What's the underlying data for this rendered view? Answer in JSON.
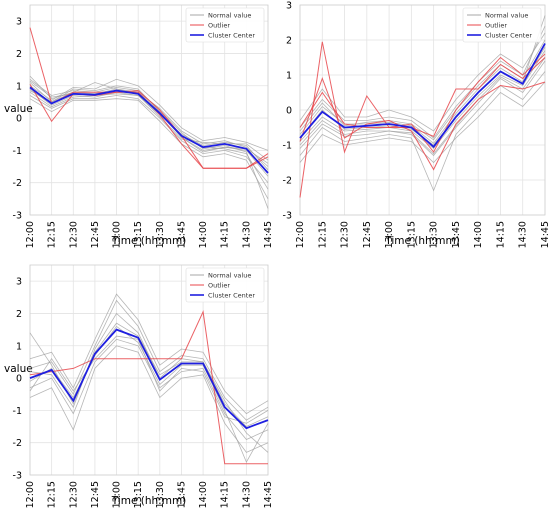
{
  "chart_data": [
    {
      "type": "line",
      "title": "",
      "xlabel": "Time (hh:mm)",
      "ylabel": "value",
      "ylim": [
        -3,
        3.5
      ],
      "yticks": [
        -3,
        -2,
        -1,
        0,
        1,
        2,
        3
      ],
      "grid": true,
      "legend_position": "top-right",
      "categories": [
        "12:00",
        "12:15",
        "12:30",
        "12:45",
        "13:00",
        "13:15",
        "13:30",
        "13:45",
        "14:00",
        "14:15",
        "14:30",
        "14:45"
      ],
      "legend": [
        "Normal value",
        "Outlier",
        "Cluster Center"
      ],
      "colors": {
        "normal": "#9e9e9e",
        "outlier": "#e8474b",
        "center": "#1f1fe0"
      },
      "center": [
        0.95,
        0.45,
        0.75,
        0.72,
        0.85,
        0.75,
        0.15,
        -0.55,
        -0.9,
        -0.8,
        -0.95,
        -1.7
      ],
      "outliers": [
        [
          2.8,
          0.45,
          0.8,
          0.8,
          0.8,
          0.8,
          0.1,
          -0.8,
          -1.55,
          -1.55,
          -1.55,
          -1.1
        ],
        [
          1.05,
          -0.1,
          0.75,
          0.7,
          0.8,
          0.85,
          0.25,
          -0.55,
          -1.55,
          -1.55,
          -1.55,
          -1.2
        ]
      ],
      "normals": [
        [
          1.3,
          0.6,
          0.8,
          0.75,
          0.9,
          0.8,
          0.3,
          -0.4,
          -0.8,
          -0.7,
          -0.9,
          -1.5
        ],
        [
          0.7,
          0.3,
          0.6,
          0.6,
          0.7,
          0.6,
          0.0,
          -0.7,
          -1.1,
          -1.0,
          -1.2,
          -2.0
        ],
        [
          1.1,
          0.5,
          0.9,
          0.85,
          1.0,
          0.9,
          0.2,
          -0.6,
          -1.0,
          -0.9,
          -1.0,
          -1.8
        ],
        [
          0.9,
          0.4,
          0.7,
          0.65,
          0.8,
          0.7,
          0.1,
          -0.5,
          -0.85,
          -0.75,
          -0.85,
          -1.6
        ],
        [
          1.2,
          0.7,
          0.85,
          0.8,
          0.95,
          0.85,
          0.25,
          -0.45,
          -0.95,
          -0.85,
          -1.05,
          -2.8
        ],
        [
          0.8,
          0.35,
          0.65,
          0.7,
          0.75,
          0.7,
          0.05,
          -0.65,
          -0.75,
          -0.8,
          -0.8,
          -1.3
        ],
        [
          1.0,
          0.55,
          0.95,
          0.9,
          1.2,
          1.0,
          0.4,
          -0.3,
          -0.7,
          -0.6,
          -0.75,
          -1.0
        ],
        [
          0.6,
          0.2,
          0.55,
          0.55,
          0.6,
          0.55,
          -0.1,
          -0.8,
          -1.2,
          -1.1,
          -1.3,
          -2.5
        ],
        [
          1.15,
          0.65,
          0.75,
          0.75,
          0.85,
          0.8,
          0.2,
          -0.55,
          -0.9,
          -0.95,
          -1.1,
          -2.2
        ],
        [
          0.85,
          0.5,
          0.8,
          1.1,
          0.9,
          0.75,
          0.15,
          -0.6,
          -1.05,
          -0.9,
          -0.95,
          -1.4
        ]
      ]
    },
    {
      "type": "line",
      "title": "",
      "xlabel": "Time (hh:mm)",
      "ylabel": "",
      "ylim": [
        -3,
        3
      ],
      "yticks": [
        -3,
        -2,
        -1,
        0,
        1,
        2,
        3
      ],
      "grid": true,
      "legend_position": "top-right",
      "categories": [
        "12:00",
        "12:15",
        "12:30",
        "12:45",
        "13:00",
        "13:15",
        "13:30",
        "13:45",
        "14:00",
        "14:15",
        "14:30",
        "14:45"
      ],
      "legend": [
        "Normal value",
        "Outlier",
        "Cluster Center"
      ],
      "colors": {
        "normal": "#9e9e9e",
        "outlier": "#e8474b",
        "center": "#1f1fe0"
      },
      "center": [
        -0.8,
        -0.05,
        -0.5,
        -0.45,
        -0.4,
        -0.5,
        -1.05,
        -0.2,
        0.5,
        1.1,
        0.75,
        1.9
      ],
      "outliers": [
        [
          -2.5,
          1.95,
          -1.2,
          0.4,
          -0.5,
          -0.5,
          -0.75,
          0.6,
          0.6,
          1.3,
          0.9,
          1.5
        ],
        [
          -0.9,
          0.9,
          -0.8,
          -0.4,
          -0.3,
          -0.6,
          -1.7,
          -0.4,
          0.3,
          0.7,
          0.6,
          0.8
        ],
        [
          -0.5,
          0.5,
          -0.4,
          -0.5,
          -0.5,
          -0.4,
          -1.2,
          0.0,
          0.8,
          1.5,
          1.0,
          1.6
        ]
      ],
      "normals": [
        [
          -0.5,
          0.3,
          -0.3,
          -0.3,
          -0.2,
          -0.3,
          -0.8,
          0.1,
          0.8,
          1.4,
          1.0,
          2.4
        ],
        [
          -1.0,
          -0.3,
          -0.7,
          -0.6,
          -0.6,
          -0.7,
          -1.3,
          -0.5,
          0.2,
          0.9,
          0.5,
          1.4
        ],
        [
          -0.7,
          0.1,
          -0.4,
          -0.4,
          -0.35,
          -0.45,
          -0.95,
          -0.1,
          0.6,
          1.2,
          0.8,
          2.7
        ],
        [
          -1.3,
          -0.5,
          -0.9,
          -0.8,
          -0.7,
          -0.8,
          -2.3,
          -0.7,
          0.0,
          0.7,
          0.3,
          1.1
        ],
        [
          -0.3,
          0.6,
          -0.2,
          -0.2,
          0.0,
          -0.2,
          -0.6,
          0.3,
          1.0,
          1.6,
          1.2,
          2.2
        ],
        [
          -0.9,
          -0.2,
          -0.6,
          -0.55,
          -0.5,
          -0.6,
          -1.1,
          -0.3,
          0.4,
          1.0,
          0.7,
          1.7
        ],
        [
          -1.5,
          -0.7,
          -1.0,
          -0.9,
          -0.8,
          -0.9,
          -1.5,
          -0.8,
          -0.2,
          0.5,
          0.1,
          0.8
        ],
        [
          -0.6,
          0.2,
          -0.45,
          -0.35,
          -0.3,
          -0.4,
          -0.85,
          0.0,
          0.7,
          1.3,
          0.9,
          2.0
        ],
        [
          -0.8,
          0.0,
          -0.55,
          -0.5,
          -0.45,
          -0.55,
          -1.0,
          -0.2,
          0.5,
          1.1,
          0.75,
          1.8
        ],
        [
          -1.1,
          -0.4,
          -0.75,
          -0.7,
          -0.6,
          -0.65,
          -1.25,
          -0.45,
          0.3,
          0.95,
          0.6,
          1.5
        ]
      ]
    },
    {
      "type": "line",
      "title": "",
      "xlabel": "Time (hh:mm)",
      "ylabel": "value",
      "ylim": [
        -3,
        3.5
      ],
      "yticks": [
        -3,
        -2,
        -1,
        0,
        1,
        2,
        3
      ],
      "grid": true,
      "legend_position": "top-right",
      "categories": [
        "12:00",
        "12:15",
        "12:30",
        "12:45",
        "13:00",
        "13:15",
        "13:30",
        "13:45",
        "14:00",
        "14:15",
        "14:30",
        "14:45"
      ],
      "legend": [
        "Normal value",
        "Outlier",
        "Cluster Center"
      ],
      "colors": {
        "normal": "#9e9e9e",
        "outlier": "#e8474b",
        "center": "#1f1fe0"
      },
      "center": [
        0.0,
        0.25,
        -0.7,
        0.75,
        1.5,
        1.25,
        -0.05,
        0.45,
        0.45,
        -0.9,
        -1.55,
        -1.3
      ],
      "outliers": [
        [
          0.1,
          0.2,
          0.3,
          0.6,
          0.6,
          0.6,
          0.6,
          0.6,
          2.05,
          -2.65,
          -2.65,
          -2.65
        ]
      ],
      "normals": [
        [
          0.3,
          0.5,
          -0.5,
          1.0,
          2.4,
          1.6,
          0.2,
          0.7,
          0.6,
          -0.6,
          -1.3,
          -0.9
        ],
        [
          -0.3,
          0.0,
          -1.1,
          0.5,
          1.2,
          1.0,
          -0.3,
          0.2,
          0.3,
          -1.1,
          -1.9,
          -1.6
        ],
        [
          0.6,
          0.8,
          -0.3,
          1.2,
          2.6,
          1.8,
          0.4,
          0.9,
          0.8,
          -0.4,
          -1.1,
          -0.7
        ],
        [
          -0.6,
          -0.3,
          -1.6,
          0.3,
          1.0,
          0.8,
          -0.6,
          0.0,
          0.1,
          -1.4,
          -2.3,
          -2.0
        ],
        [
          1.4,
          0.4,
          -0.8,
          0.8,
          1.7,
          1.3,
          0.1,
          0.5,
          0.5,
          -0.8,
          -1.5,
          -1.2
        ],
        [
          -0.1,
          0.3,
          -0.6,
          0.7,
          1.6,
          1.1,
          -0.2,
          0.4,
          0.4,
          -1.0,
          -2.6,
          -1.4
        ],
        [
          0.2,
          0.1,
          -0.9,
          0.9,
          2.0,
          1.4,
          0.0,
          0.6,
          0.5,
          -0.7,
          -1.7,
          -2.3
        ],
        [
          -0.4,
          0.6,
          -0.4,
          0.6,
          1.3,
          1.2,
          -0.4,
          0.3,
          0.2,
          -1.2,
          -1.4,
          -1.0
        ]
      ]
    }
  ]
}
